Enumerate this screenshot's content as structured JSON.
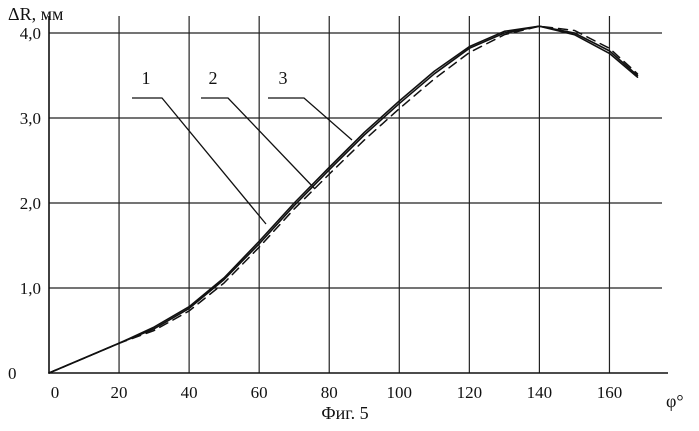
{
  "chart_data": {
    "type": "line",
    "ylabel": "ΔR, мм",
    "xlabel": "φ°",
    "caption": "Фиг. 5",
    "xlim": [
      0,
      175
    ],
    "ylim": [
      0,
      4.2
    ],
    "x_ticks": [
      {
        "value": 0,
        "label": "0"
      },
      {
        "value": 20,
        "label": "20"
      },
      {
        "value": 40,
        "label": "40"
      },
      {
        "value": 60,
        "label": "60"
      },
      {
        "value": 80,
        "label": "80"
      },
      {
        "value": 100,
        "label": "100"
      },
      {
        "value": 120,
        "label": "120"
      },
      {
        "value": 140,
        "label": "140"
      },
      {
        "value": 160,
        "label": "160"
      }
    ],
    "y_ticks": [
      {
        "value": 0,
        "label": "0"
      },
      {
        "value": 1,
        "label": "1,0"
      },
      {
        "value": 2,
        "label": "2,0"
      },
      {
        "value": 3,
        "label": "3,0"
      },
      {
        "value": 4,
        "label": "4,0"
      }
    ],
    "grid": true,
    "series": [
      {
        "name": "1",
        "color": "#111111",
        "style": "solid",
        "x": [
          0,
          20,
          30,
          40,
          50,
          60,
          70,
          80,
          90,
          100,
          110,
          120,
          130,
          140,
          150,
          160,
          168
        ],
        "y": [
          0,
          0.35,
          0.54,
          0.78,
          1.12,
          1.55,
          2.0,
          2.42,
          2.83,
          3.2,
          3.55,
          3.84,
          4.02,
          4.08,
          3.98,
          3.76,
          3.48
        ]
      },
      {
        "name": "2",
        "color": "#111111",
        "style": "solid",
        "x": [
          0,
          20,
          30,
          40,
          50,
          60,
          70,
          80,
          90,
          100,
          110,
          120,
          130,
          140,
          150,
          160,
          168
        ],
        "y": [
          0,
          0.35,
          0.52,
          0.76,
          1.1,
          1.52,
          1.97,
          2.39,
          2.8,
          3.17,
          3.52,
          3.82,
          4.0,
          4.08,
          4.0,
          3.79,
          3.5
        ]
      },
      {
        "name": "3",
        "color": "#111111",
        "style": "dashed",
        "x": [
          0,
          20,
          30,
          40,
          50,
          60,
          70,
          80,
          90,
          100,
          110,
          120,
          130,
          140,
          150,
          160,
          168
        ],
        "y": [
          0,
          0.35,
          0.5,
          0.73,
          1.06,
          1.48,
          1.93,
          2.34,
          2.74,
          3.11,
          3.46,
          3.77,
          3.98,
          4.08,
          4.03,
          3.82,
          3.52
        ]
      }
    ]
  }
}
